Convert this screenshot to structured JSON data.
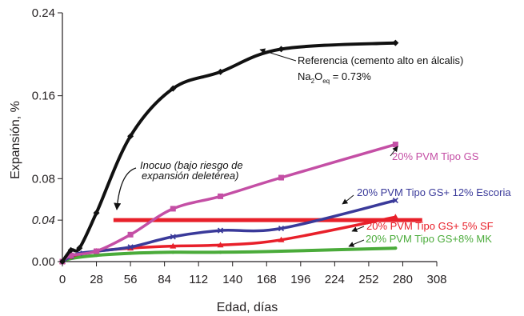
{
  "chart_data": {
    "type": "line",
    "xlabel": "Edad, días",
    "ylabel": "Expansión, %",
    "xlim": [
      0,
      308
    ],
    "ylim": [
      0,
      0.24
    ],
    "x_ticks": [
      "0",
      "28",
      "56",
      "84",
      "112",
      "140",
      "168",
      "196",
      "224",
      "252",
      "280",
      "308"
    ],
    "y_ticks": [
      {
        "value": 0.0,
        "label": "0.00",
        "italic": false
      },
      {
        "value": 0.04,
        "label": "0.04",
        "italic": true
      },
      {
        "value": 0.08,
        "label": "0.08",
        "italic": false
      },
      {
        "value": 0.16,
        "label": "0.16",
        "italic": false
      },
      {
        "value": 0.24,
        "label": "0.24",
        "italic": false
      }
    ],
    "threshold": {
      "value": 0.04,
      "color": "#e8202a",
      "label_line1": "Inocuo (bajo riesgo de",
      "label_line2": "expansión deletérea)"
    },
    "series": [
      {
        "name": "Referencia (cemento alto en álcalis)",
        "color": "#111111",
        "marker": "diamond",
        "x": [
          0,
          7,
          14,
          28,
          56,
          91,
          130,
          180,
          274
        ],
        "y": [
          0.0,
          0.011,
          0.013,
          0.047,
          0.121,
          0.167,
          0.183,
          0.205,
          0.211
        ]
      },
      {
        "name": "20% PVM Tipo GS",
        "color": "#c44fa5",
        "marker": "square",
        "x": [
          0,
          7,
          28,
          56,
          91,
          130,
          180,
          274
        ],
        "y": [
          0.0,
          0.006,
          0.01,
          0.026,
          0.051,
          0.063,
          0.081,
          0.113
        ]
      },
      {
        "name": "20% PVM Tipo GS+ 12% Escoria",
        "color": "#3a3a9a",
        "marker": "x",
        "x": [
          0,
          7,
          14,
          28,
          56,
          91,
          130,
          180,
          274
        ],
        "y": [
          0.0,
          0.005,
          0.008,
          0.01,
          0.014,
          0.024,
          0.03,
          0.032,
          0.059
        ]
      },
      {
        "name": "20% PVM Tipo GS+ 5% SF",
        "color": "#e8202a",
        "marker": "triangle",
        "x": [
          0,
          7,
          28,
          56,
          91,
          130,
          180,
          274
        ],
        "y": [
          0.0,
          0.005,
          0.01,
          0.013,
          0.015,
          0.016,
          0.021,
          0.043
        ]
      },
      {
        "name": "20% PVM Tipo GS+8% MK",
        "color": "#4aab3a",
        "marker": "dot",
        "x": [
          0,
          7,
          28,
          56,
          91,
          130,
          180,
          274
        ],
        "y": [
          0.0,
          0.003,
          0.006,
          0.008,
          0.009,
          0.009,
          0.01,
          0.013
        ]
      }
    ],
    "annotations": {
      "ref_line1": "Referencia (cemento alto en álcalis)",
      "ref_na": "Na",
      "ref_sub1": "2",
      "ref_o": "O",
      "ref_sub2": "eq",
      "ref_value": " = 0.73%"
    },
    "grid": false,
    "legend": "none"
  }
}
